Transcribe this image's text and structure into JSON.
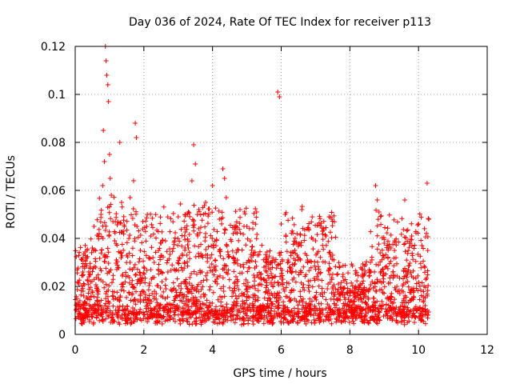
{
  "chart_data": {
    "type": "scatter",
    "title": "Day 036 of 2024, Rate Of TEC Index for receiver p113",
    "xlabel": "GPS time / hours",
    "ylabel": "ROTI / TECUs",
    "xlim": [
      0,
      12
    ],
    "ylim": [
      0,
      0.12
    ],
    "x_ticks": [
      0,
      2,
      4,
      6,
      8,
      10,
      12
    ],
    "x_tick_labels": [
      "0",
      "2",
      "4",
      "6",
      "8",
      "10",
      "12"
    ],
    "y_ticks": [
      0,
      0.02,
      0.04,
      0.06,
      0.08,
      0.1,
      0.12
    ],
    "y_tick_labels": [
      "0",
      "0.02",
      "0.04",
      "0.06",
      "0.08",
      "0.1",
      "0.12"
    ],
    "grid": true,
    "marker": "+",
    "marker_color": "#ff0000",
    "data_range_hours": [
      0,
      10.3
    ],
    "series": [
      {
        "name": "ROTI",
        "points": [
          [
            0.05,
            0.013
          ],
          [
            0.1,
            0.021
          ],
          [
            0.15,
            0.008
          ],
          [
            0.2,
            0.031
          ],
          [
            0.25,
            0.016
          ],
          [
            0.3,
            0.011
          ],
          [
            0.4,
            0.024
          ],
          [
            0.5,
            0.036
          ],
          [
            0.55,
            0.045
          ],
          [
            0.6,
            0.028
          ],
          [
            0.65,
            0.012
          ],
          [
            0.7,
            0.042
          ],
          [
            0.75,
            0.05
          ],
          [
            0.8,
            0.062
          ],
          [
            0.82,
            0.085
          ],
          [
            0.85,
            0.072
          ],
          [
            0.88,
            0.12
          ],
          [
            0.9,
            0.114
          ],
          [
            0.92,
            0.108
          ],
          [
            0.95,
            0.104
          ],
          [
            0.97,
            0.097
          ],
          [
            1.0,
            0.075
          ],
          [
            1.02,
            0.065
          ],
          [
            1.05,
            0.058
          ],
          [
            1.1,
            0.047
          ],
          [
            1.15,
            0.039
          ],
          [
            1.2,
            0.031
          ],
          [
            1.3,
            0.08
          ],
          [
            1.35,
            0.055
          ],
          [
            1.4,
            0.043
          ],
          [
            1.5,
            0.033
          ],
          [
            1.6,
            0.057
          ],
          [
            1.7,
            0.064
          ],
          [
            1.75,
            0.088
          ],
          [
            1.78,
            0.082
          ],
          [
            1.8,
            0.045
          ],
          [
            1.9,
            0.035
          ],
          [
            2.0,
            0.028
          ],
          [
            2.1,
            0.05
          ],
          [
            2.2,
            0.041
          ],
          [
            2.3,
            0.03
          ],
          [
            2.5,
            0.038
          ],
          [
            2.7,
            0.026
          ],
          [
            3.0,
            0.049
          ],
          [
            3.2,
            0.036
          ],
          [
            3.4,
            0.064
          ],
          [
            3.45,
            0.079
          ],
          [
            3.5,
            0.071
          ],
          [
            3.6,
            0.052
          ],
          [
            3.8,
            0.055
          ],
          [
            4.0,
            0.062
          ],
          [
            4.2,
            0.048
          ],
          [
            4.3,
            0.069
          ],
          [
            4.35,
            0.065
          ],
          [
            4.4,
            0.057
          ],
          [
            4.6,
            0.042
          ],
          [
            4.8,
            0.052
          ],
          [
            5.0,
            0.045
          ],
          [
            5.2,
            0.034
          ],
          [
            5.5,
            0.028
          ],
          [
            5.8,
            0.024
          ],
          [
            5.9,
            0.101
          ],
          [
            5.95,
            0.099
          ],
          [
            6.0,
            0.046
          ],
          [
            6.2,
            0.031
          ],
          [
            6.4,
            0.038
          ],
          [
            6.6,
            0.052
          ],
          [
            6.8,
            0.044
          ],
          [
            7.0,
            0.039
          ],
          [
            7.2,
            0.043
          ],
          [
            7.5,
            0.033
          ],
          [
            7.8,
            0.025
          ],
          [
            8.0,
            0.018
          ],
          [
            8.3,
            0.021
          ],
          [
            8.6,
            0.03
          ],
          [
            8.75,
            0.062
          ],
          [
            8.8,
            0.056
          ],
          [
            8.85,
            0.051
          ],
          [
            9.0,
            0.038
          ],
          [
            9.3,
            0.035
          ],
          [
            9.6,
            0.056
          ],
          [
            9.8,
            0.041
          ],
          [
            10.0,
            0.046
          ],
          [
            10.1,
            0.037
          ],
          [
            10.25,
            0.063
          ],
          [
            10.3,
            0.048
          ]
        ]
      }
    ]
  }
}
